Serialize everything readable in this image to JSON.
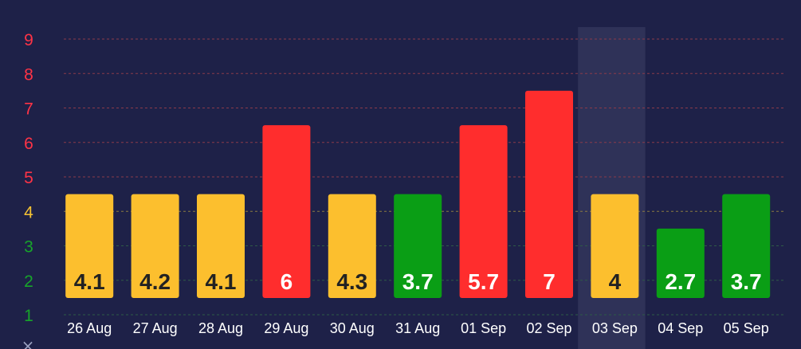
{
  "chart_data": {
    "type": "bar",
    "categories": [
      "26 Aug",
      "27 Aug",
      "28 Aug",
      "29 Aug",
      "30 Aug",
      "31 Aug",
      "01 Sep",
      "02 Sep",
      "03 Sep",
      "04 Sep",
      "05 Sep"
    ],
    "values": [
      4.1,
      4.2,
      4.1,
      6,
      4.3,
      3.7,
      5.7,
      7,
      4,
      2.7,
      3.7
    ],
    "value_labels": [
      "4.1",
      "4.2",
      "4.1",
      "6",
      "4.3",
      "3.7",
      "5.7",
      "7",
      "4",
      "2.7",
      "3.7"
    ],
    "y_ticks": [
      "1",
      "2",
      "3",
      "4",
      "5",
      "6",
      "7",
      "8",
      "9"
    ],
    "ylim": [
      1,
      9
    ],
    "highlighted_category": "03 Sep",
    "title": "",
    "xlabel": "",
    "ylabel": "",
    "axis_marker": "×",
    "grid": true,
    "colors": {
      "background": "#1e2148",
      "highlight": "#2f3258",
      "grid_red": "#8a3a4a",
      "grid_yellow": "#8a7a40",
      "grid_green": "#2e5a46",
      "low": "#0a9e15",
      "medium": "#fcbf2e",
      "high": "#ff2d2d",
      "tick_low": "#17a52a",
      "tick_medium": "#f4c233",
      "tick_high": "#ff3346",
      "label_dark": "#222222",
      "label_light": "#ffffff",
      "category_text": "#ffffff",
      "marker": "#9aa0c0"
    }
  }
}
